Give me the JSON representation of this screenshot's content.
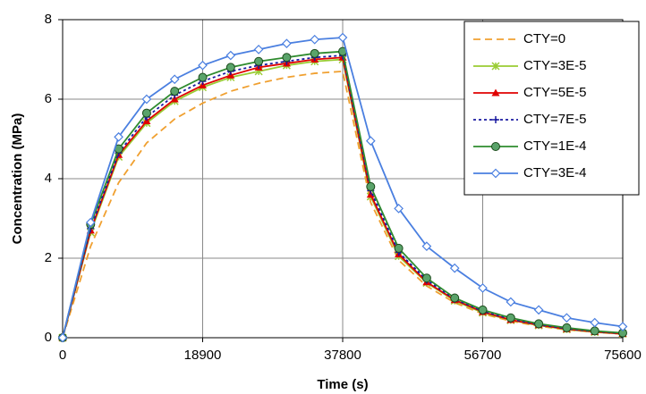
{
  "chart_data": {
    "type": "line",
    "x_label": "Time (s)",
    "y_label": "Concentration (MPa)",
    "x": [
      0,
      3780,
      7560,
      11340,
      15120,
      18900,
      22680,
      26460,
      30240,
      34020,
      37800,
      41580,
      45360,
      49140,
      52920,
      56700,
      60480,
      64260,
      68040,
      71820,
      75600
    ],
    "xlim": [
      0,
      75600
    ],
    "xticks": [
      0,
      18900,
      37800,
      56700,
      75600
    ],
    "ylim": [
      0,
      8
    ],
    "yticks": [
      0,
      2,
      4,
      6,
      8
    ],
    "grid": true,
    "legend": "top-right",
    "series": [
      {
        "name": "CTY=0",
        "color": "#f0a030",
        "dash": true,
        "marker": "none",
        "values": [
          0,
          2.3,
          3.9,
          4.9,
          5.5,
          5.9,
          6.2,
          6.4,
          6.55,
          6.65,
          6.7,
          3.4,
          1.95,
          1.3,
          0.88,
          0.6,
          0.42,
          0.29,
          0.2,
          0.14,
          0.09
        ]
      },
      {
        "name": "CTY=3E-5",
        "color": "#99cc33",
        "dash": false,
        "marker": "x",
        "values": [
          0,
          2.65,
          4.55,
          5.4,
          5.95,
          6.3,
          6.55,
          6.7,
          6.85,
          6.95,
          7.0,
          3.55,
          2.05,
          1.38,
          0.93,
          0.63,
          0.44,
          0.31,
          0.21,
          0.14,
          0.1
        ]
      },
      {
        "name": "CTY=5E-5",
        "color": "#e00000",
        "dash": false,
        "marker": "triangle",
        "values": [
          0,
          2.7,
          4.6,
          5.45,
          6.0,
          6.35,
          6.6,
          6.8,
          6.9,
          7.0,
          7.05,
          3.6,
          2.1,
          1.4,
          0.95,
          0.65,
          0.45,
          0.32,
          0.22,
          0.15,
          0.1
        ]
      },
      {
        "name": "CTY=7E-5",
        "color": "#1a1aa0",
        "dash": true,
        "marker": "plus",
        "values": [
          0,
          2.75,
          4.65,
          5.55,
          6.1,
          6.45,
          6.7,
          6.85,
          6.95,
          7.05,
          7.1,
          3.7,
          2.15,
          1.45,
          0.97,
          0.67,
          0.47,
          0.33,
          0.23,
          0.16,
          0.11
        ]
      },
      {
        "name": "CTY=1E-4",
        "color": "#2e8b2e",
        "dash": false,
        "marker": "circle",
        "values": [
          0,
          2.85,
          4.75,
          5.65,
          6.2,
          6.55,
          6.8,
          6.95,
          7.05,
          7.15,
          7.2,
          3.8,
          2.25,
          1.5,
          1.0,
          0.7,
          0.5,
          0.35,
          0.25,
          0.17,
          0.12
        ]
      },
      {
        "name": "CTY=3E-4",
        "color": "#4a7fe0",
        "dash": false,
        "marker": "diamond",
        "values": [
          0,
          2.9,
          5.05,
          6.0,
          6.5,
          6.85,
          7.1,
          7.25,
          7.4,
          7.5,
          7.55,
          4.95,
          3.25,
          2.3,
          1.75,
          1.25,
          0.9,
          0.7,
          0.5,
          0.38,
          0.28
        ]
      }
    ]
  }
}
